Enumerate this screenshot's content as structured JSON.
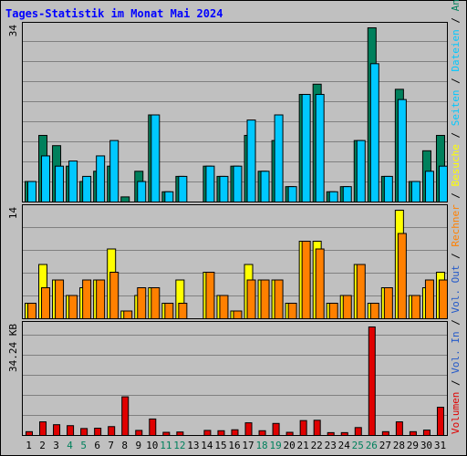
{
  "chart_data": {
    "title": "Tages-Statistik im Monat Mai 2024",
    "type": "bar",
    "days": [
      "1",
      "2",
      "3",
      "4",
      "5",
      "6",
      "7",
      "8",
      "9",
      "10",
      "11",
      "12",
      "13",
      "14",
      "15",
      "16",
      "17",
      "18",
      "19",
      "20",
      "21",
      "22",
      "23",
      "24",
      "25",
      "26",
      "27",
      "28",
      "29",
      "30",
      "31"
    ],
    "weekend_days": [
      "4",
      "5",
      "11",
      "12",
      "18",
      "19",
      "25",
      "26"
    ],
    "colors": {
      "title": "#0000ff",
      "anfragen": "#00805c",
      "dateien": "#00c8ff",
      "seiten": "#00c8ff",
      "besuche": "#ffff00",
      "rechner": "#ff8000",
      "vol_out": "#2359c9",
      "volumen": "#e00000",
      "weekend_label": "#00805c",
      "weekday_label": "#000000",
      "separator": "#000000"
    },
    "panels": [
      {
        "id": "hits",
        "ymax_label": "34",
        "ymax": 34,
        "series": [
          {
            "name": "Anfragen",
            "values": [
              4,
              13,
              11,
              7,
              4,
              6,
              7,
              1,
              6,
              17,
              2,
              5,
              0,
              7,
              5,
              7,
              13,
              6,
              12,
              3,
              21,
              23,
              2,
              3,
              12,
              34,
              5,
              22,
              4,
              10,
              13
            ]
          },
          {
            "name": "Dateien",
            "values": [
              4,
              9,
              7,
              8,
              5,
              9,
              12,
              0,
              4,
              17,
              2,
              5,
              0,
              7,
              5,
              7,
              16,
              6,
              17,
              3,
              21,
              21,
              2,
              3,
              12,
              27,
              5,
              20,
              4,
              6,
              7
            ]
          }
        ]
      },
      {
        "id": "visits",
        "ymax_label": "14",
        "ymax": 14,
        "series": [
          {
            "name": "Besuche",
            "values": [
              2,
              7,
              5,
              3,
              4,
              5,
              9,
              1,
              3,
              4,
              2,
              5,
              0,
              6,
              3,
              1,
              7,
              5,
              5,
              2,
              10,
              10,
              2,
              3,
              7,
              2,
              4,
              14,
              3,
              4,
              6
            ]
          },
          {
            "name": "Rechner",
            "values": [
              2,
              4,
              5,
              3,
              5,
              5,
              6,
              1,
              4,
              4,
              2,
              2,
              0,
              6,
              3,
              1,
              5,
              5,
              5,
              2,
              10,
              9,
              2,
              3,
              7,
              2,
              4,
              11,
              3,
              5,
              5
            ]
          }
        ]
      },
      {
        "id": "volume",
        "ymax_label": "34.24 KB",
        "ymax": 34.24,
        "series": [
          {
            "name": "Volumen",
            "values": [
              1.2,
              4.3,
              3.4,
              3.1,
              2.2,
              2.3,
              2.8,
              12.2,
              1.6,
              5.2,
              1.0,
              1.1,
              0,
              1.6,
              1.5,
              1.8,
              4.0,
              1.5,
              3.8,
              1.0,
              4.7,
              4.8,
              0.9,
              0.9,
              2.5,
              34.24,
              1.2,
              4.3,
              1.2,
              1.7,
              8.9
            ]
          }
        ]
      }
    ],
    "right_legend": [
      {
        "key": "volumen",
        "text": "Volumen"
      },
      {
        "key": "sep",
        "text": "/"
      },
      {
        "key": "vol_out",
        "text": "Vol. In"
      },
      {
        "key": "sep",
        "text": "/"
      },
      {
        "key": "vol_out",
        "text": "Vol. Out"
      },
      {
        "key": "sep",
        "text": "/"
      },
      {
        "key": "rechner",
        "text": "Rechner"
      },
      {
        "key": "sep",
        "text": "/"
      },
      {
        "key": "besuche",
        "text": "Besuche"
      },
      {
        "key": "sep",
        "text": "/"
      },
      {
        "key": "seiten",
        "text": "Seiten"
      },
      {
        "key": "sep",
        "text": "/"
      },
      {
        "key": "dateien",
        "text": "Dateien"
      },
      {
        "key": "sep",
        "text": "/"
      },
      {
        "key": "anfragen",
        "text": "Anfragen"
      }
    ]
  }
}
